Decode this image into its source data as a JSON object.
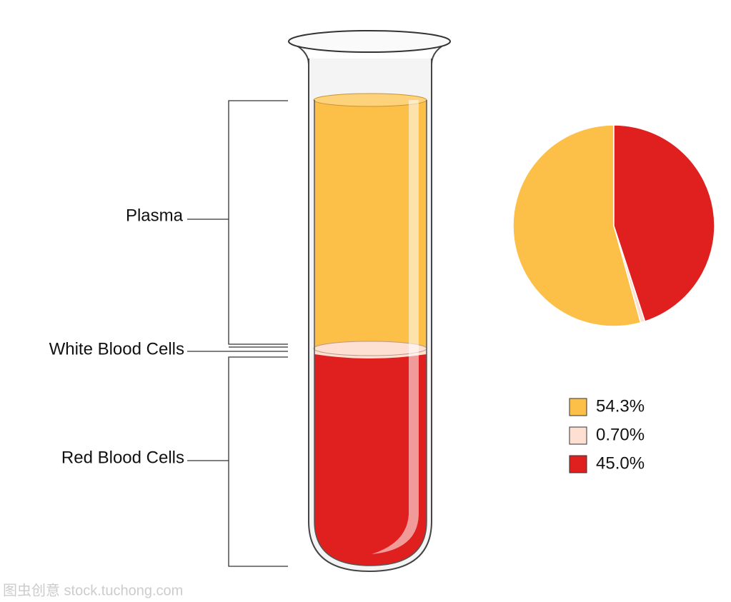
{
  "chart_data": {
    "type": "pie",
    "values": [
      54.3,
      0.7,
      45.0
    ],
    "value_labels": [
      "54.3%",
      "0.70%",
      "45.0%"
    ],
    "colors": [
      "#fcbf47",
      "#fde0d2",
      "#e01f1f"
    ]
  },
  "diagram": {
    "labels": [
      "Plasma",
      "White Blood Cells",
      "Red Blood Cells"
    ]
  },
  "watermark": "图虫创意 stock.tuchong.com"
}
